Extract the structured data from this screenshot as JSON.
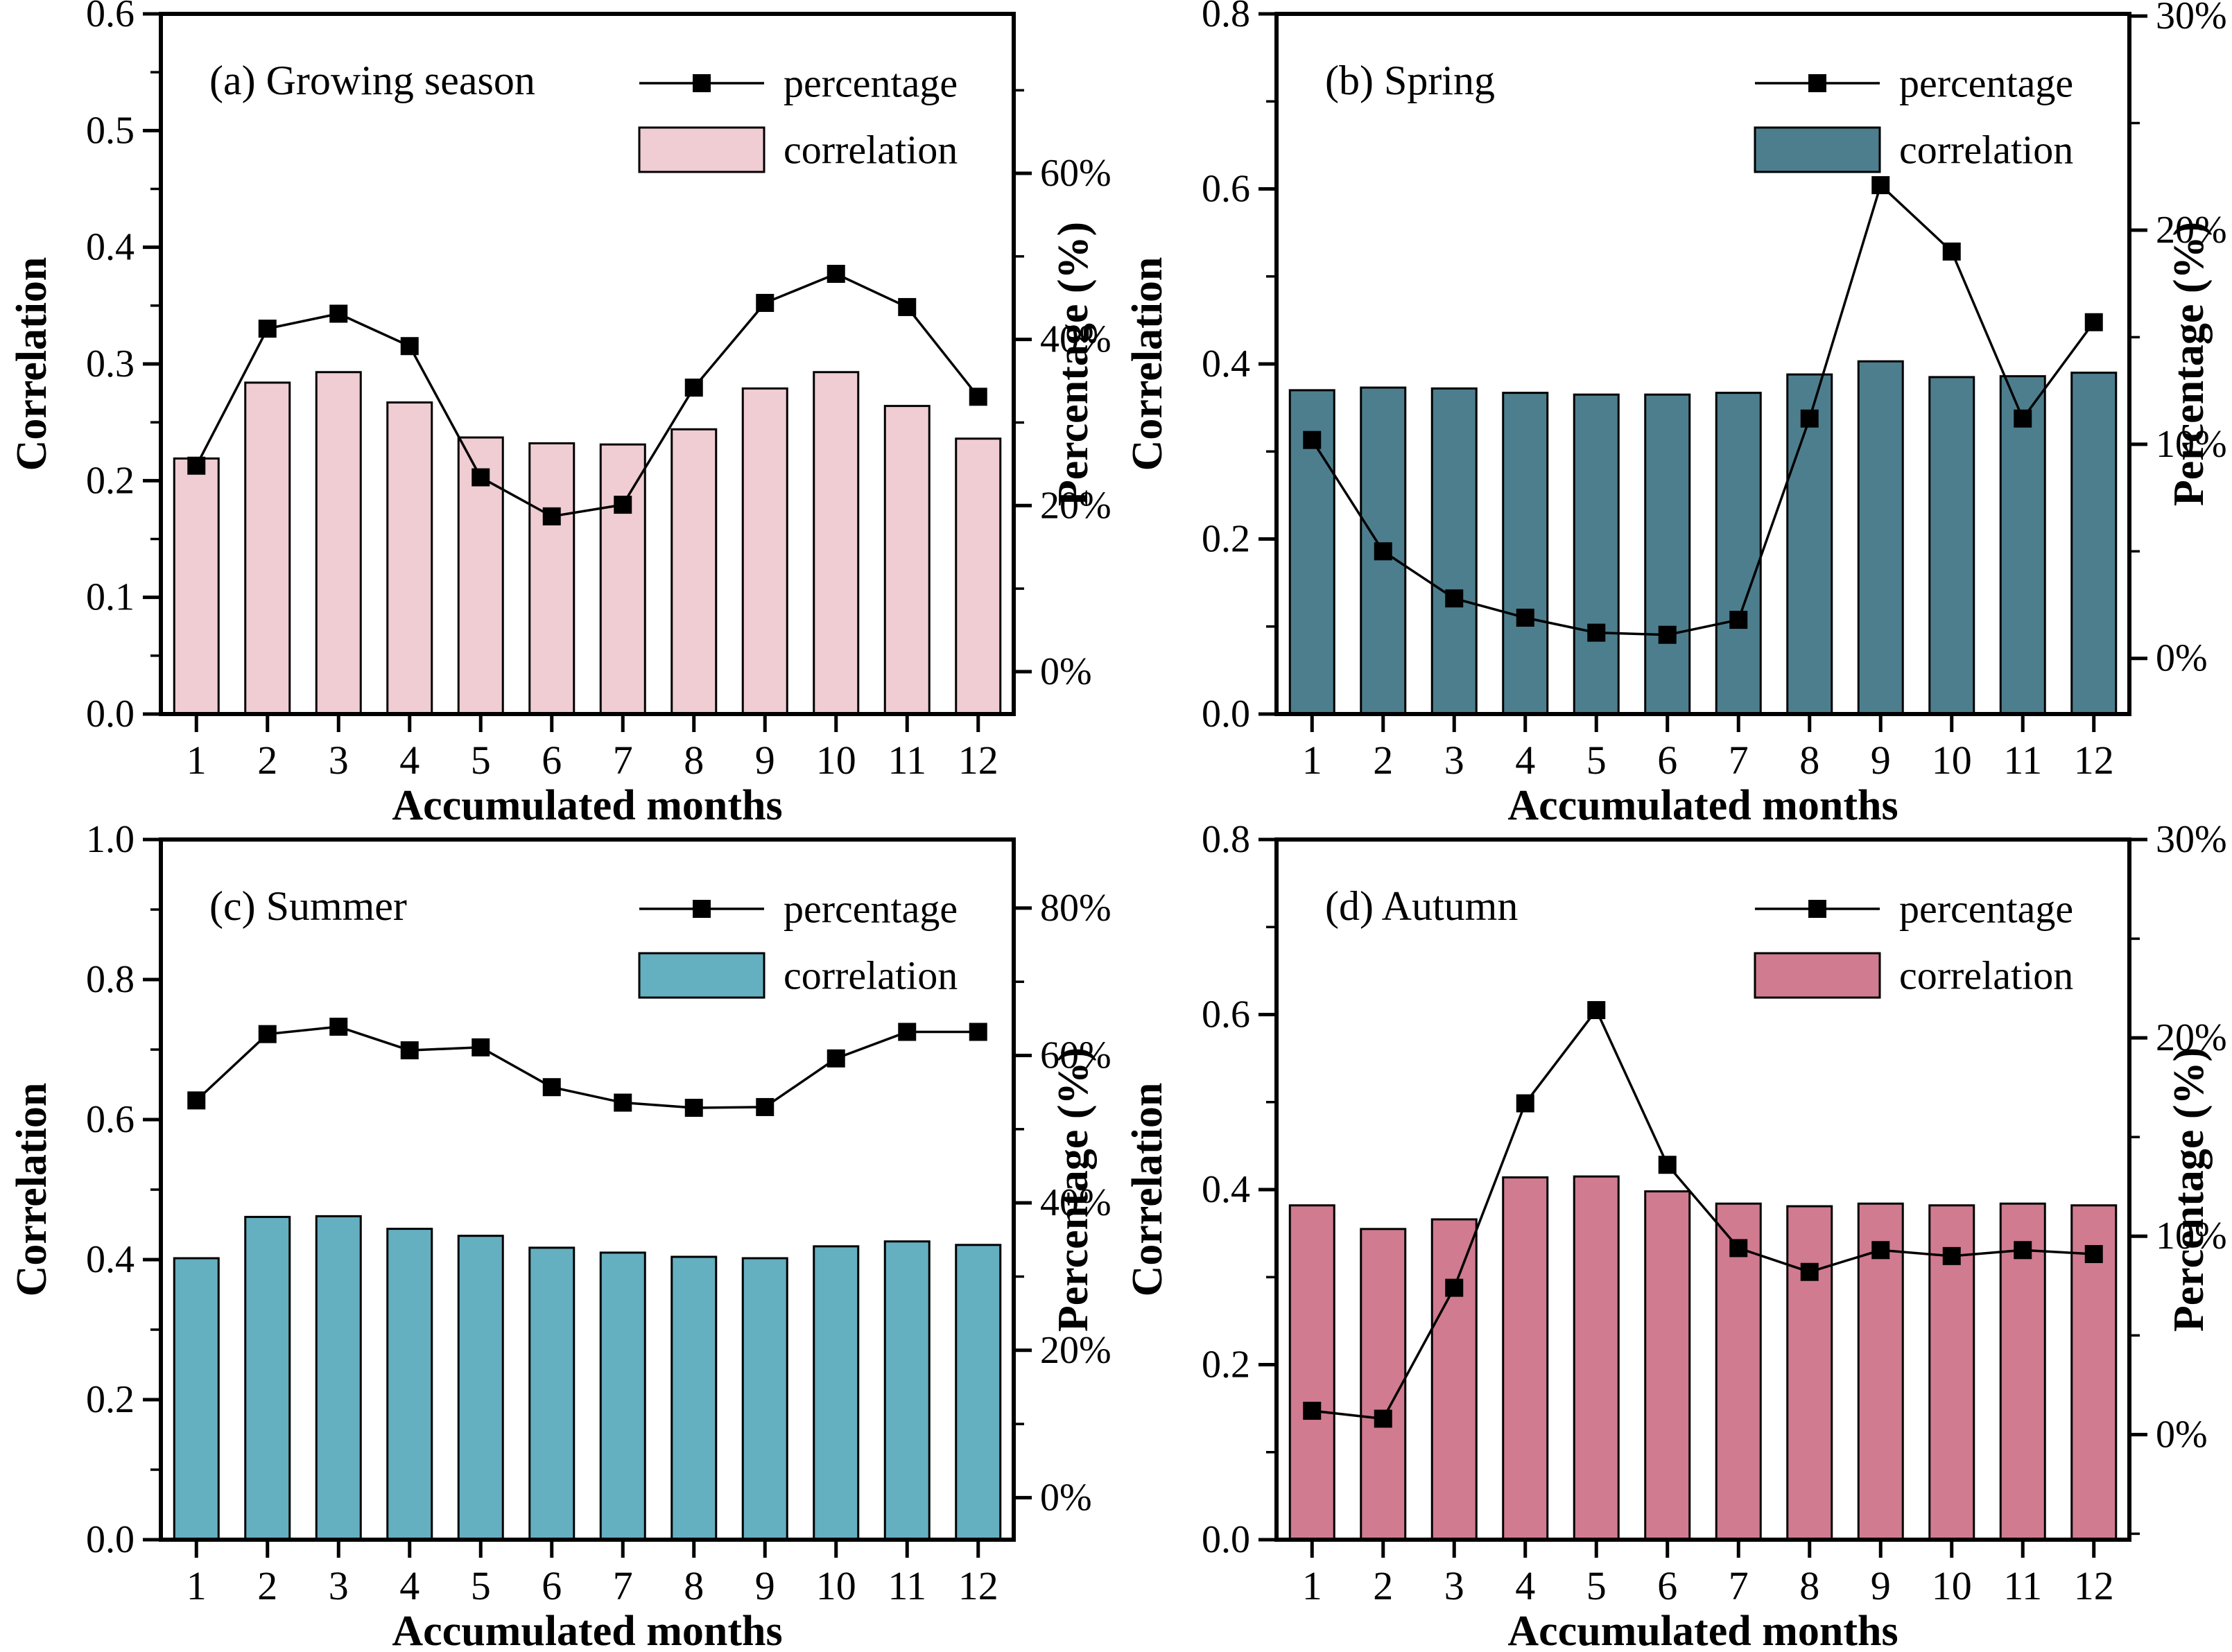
{
  "figure": {
    "background": "#ffffff",
    "line_color": "#000000",
    "frame_color": "#000000",
    "legend": {
      "line_label": "percentage",
      "bar_label": "correlation"
    }
  },
  "chart_data": [
    {
      "type": "bar+line",
      "panel_label": "(a) Growing season",
      "categories": [
        "1",
        "2",
        "3",
        "4",
        "5",
        "6",
        "7",
        "8",
        "9",
        "10",
        "11",
        "12"
      ],
      "xlabel": "Accumulated months",
      "ylabel_left": "Correlation",
      "ylabel_right": "Percentage（%）",
      "legend": [
        "percentage",
        "correlation"
      ],
      "series": [
        {
          "name": "correlation",
          "type": "bar",
          "axis": "left",
          "color": "#f0ccd3",
          "values": [
            0.219,
            0.284,
            0.293,
            0.267,
            0.237,
            0.232,
            0.231,
            0.244,
            0.279,
            0.293,
            0.264,
            0.236
          ]
        },
        {
          "name": "percentage",
          "type": "line",
          "axis": "right",
          "color": "#000000",
          "values": [
            24.8,
            41.3,
            43.1,
            39.2,
            23.4,
            18.7,
            20.1,
            34.2,
            44.4,
            47.9,
            43.9,
            33.1
          ]
        }
      ],
      "left_axis": {
        "min": 0.0,
        "max": 0.6,
        "major_step": 0.1,
        "minor_step": 0.05,
        "tick_labels": [
          "0.0",
          "0.1",
          "0.2",
          "0.3",
          "0.4",
          "0.5",
          "0.6"
        ]
      },
      "right_axis": {
        "tick_labels": [
          "0%",
          "20%",
          "40%",
          "60%"
        ],
        "tick_pcts": [
          0,
          20,
          40,
          60
        ],
        "major_step": 20,
        "minor_step": 10,
        "pct_at_bottom": -5.1,
        "pct_at_top": 79.2
      }
    },
    {
      "type": "bar+line",
      "panel_label": "(b) Spring",
      "categories": [
        "1",
        "2",
        "3",
        "4",
        "5",
        "6",
        "7",
        "8",
        "9",
        "10",
        "11",
        "12"
      ],
      "xlabel": "Accumulated months",
      "ylabel_left": "Correlation",
      "ylabel_right": "Percentage（%）",
      "legend": [
        "percentage",
        "correlation"
      ],
      "series": [
        {
          "name": "correlation",
          "type": "bar",
          "axis": "left",
          "color": "#4d7e8e",
          "values": [
            0.37,
            0.373,
            0.372,
            0.367,
            0.365,
            0.365,
            0.367,
            0.388,
            0.403,
            0.385,
            0.386,
            0.39
          ]
        },
        {
          "name": "percentage",
          "type": "line",
          "axis": "right",
          "color": "#000000",
          "values": [
            10.2,
            5.0,
            2.8,
            1.9,
            1.2,
            1.1,
            1.8,
            11.2,
            22.1,
            19.0,
            11.2,
            15.7
          ]
        }
      ],
      "left_axis": {
        "min": 0.0,
        "max": 0.8,
        "major_step": 0.2,
        "minor_step": 0.1,
        "tick_labels": [
          "0.0",
          "0.2",
          "0.4",
          "0.6",
          "0.8"
        ]
      },
      "right_axis": {
        "tick_labels": [
          "0%",
          "10%",
          "20%",
          "30%"
        ],
        "tick_pcts": [
          0,
          10,
          20,
          30
        ],
        "major_step": 10,
        "minor_step": 5,
        "pct_at_bottom": -2.6,
        "pct_at_top": 30.1
      }
    },
    {
      "type": "bar+line",
      "panel_label": "(c) Summer",
      "categories": [
        "1",
        "2",
        "3",
        "4",
        "5",
        "6",
        "7",
        "8",
        "9",
        "10",
        "11",
        "12"
      ],
      "xlabel": "Accumulated months",
      "ylabel_left": "Correlation",
      "ylabel_right": "Percentage（%）",
      "legend": [
        "percentage",
        "correlation"
      ],
      "series": [
        {
          "name": "correlation",
          "type": "bar",
          "axis": "left",
          "color": "#64afc0",
          "values": [
            0.402,
            0.461,
            0.462,
            0.444,
            0.434,
            0.417,
            0.41,
            0.404,
            0.402,
            0.419,
            0.426,
            0.421
          ]
        },
        {
          "name": "percentage",
          "type": "line",
          "axis": "right",
          "color": "#000000",
          "values": [
            53.9,
            62.9,
            63.9,
            60.7,
            61.1,
            55.7,
            53.6,
            52.9,
            53.0,
            59.6,
            63.2,
            63.2
          ]
        }
      ],
      "left_axis": {
        "min": 0.0,
        "max": 1.0,
        "major_step": 0.2,
        "minor_step": 0.1,
        "tick_labels": [
          "0.0",
          "0.2",
          "0.4",
          "0.6",
          "0.8",
          "1.0"
        ]
      },
      "right_axis": {
        "tick_labels": [
          "0%",
          "20%",
          "40%",
          "60%",
          "80%"
        ],
        "tick_pcts": [
          0,
          20,
          40,
          60,
          80
        ],
        "major_step": 20,
        "minor_step": 10,
        "pct_at_bottom": -5.7,
        "pct_at_top": 89.3
      }
    },
    {
      "type": "bar+line",
      "panel_label": "(d) Autumn",
      "categories": [
        "1",
        "2",
        "3",
        "4",
        "5",
        "6",
        "7",
        "8",
        "9",
        "10",
        "11",
        "12"
      ],
      "xlabel": "Accumulated months",
      "ylabel_left": "Correlation",
      "ylabel_right": "Percentage（%）",
      "legend": [
        "percentage",
        "correlation"
      ],
      "series": [
        {
          "name": "correlation",
          "type": "bar",
          "axis": "left",
          "color": "#d07b90",
          "values": [
            0.382,
            0.355,
            0.366,
            0.414,
            0.415,
            0.398,
            0.384,
            0.381,
            0.384,
            0.382,
            0.384,
            0.382
          ]
        },
        {
          "name": "percentage",
          "type": "line",
          "axis": "right",
          "color": "#000000",
          "values": [
            1.2,
            0.8,
            7.4,
            16.7,
            21.4,
            13.6,
            9.4,
            8.2,
            9.3,
            9.0,
            9.3,
            9.1
          ]
        }
      ],
      "left_axis": {
        "min": 0.0,
        "max": 0.8,
        "major_step": 0.2,
        "minor_step": 0.1,
        "tick_labels": [
          "0.0",
          "0.2",
          "0.4",
          "0.6",
          "0.8"
        ]
      },
      "right_axis": {
        "tick_labels": [
          "0%",
          "10%",
          "20%",
          "30%"
        ],
        "tick_pcts": [
          0,
          10,
          20,
          30
        ],
        "major_step": 10,
        "minor_step": 5,
        "pct_at_bottom": -5.3,
        "pct_at_top": 30.0
      }
    }
  ]
}
